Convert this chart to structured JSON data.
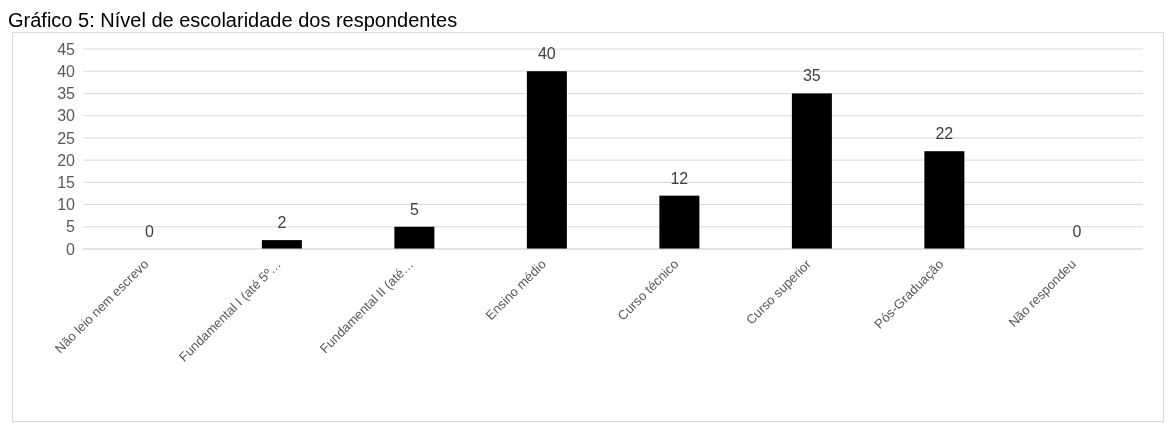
{
  "chart_data": {
    "type": "bar",
    "title": "Gráfico 5: Nível de escolaridade dos respondentes",
    "categories": [
      "Não leio nem escrevo",
      "Fundamental I (até 5º…",
      "Fundamental II (até…",
      "Ensino médio",
      "Curso técnico",
      "Curso superior",
      "Pós-Graduação",
      "Não respondeu"
    ],
    "values": [
      0,
      2,
      5,
      40,
      12,
      35,
      22,
      0
    ],
    "color": "#000000",
    "ylim": [
      0,
      45
    ],
    "yticks": [
      0,
      5,
      10,
      15,
      20,
      25,
      30,
      35,
      40,
      45
    ],
    "grid": "y",
    "data_labels": true
  }
}
